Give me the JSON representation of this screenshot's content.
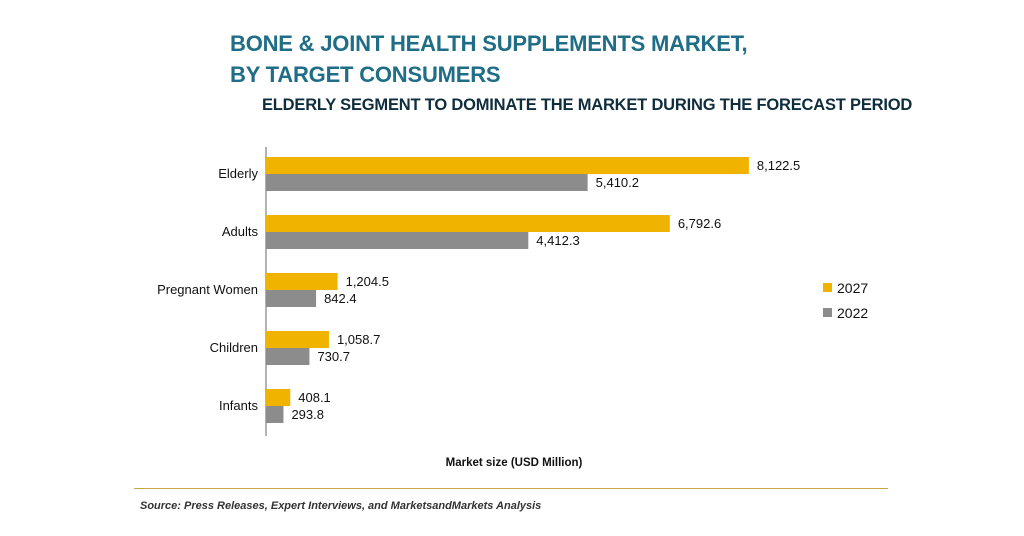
{
  "header": {
    "title_line1": "BONE & JOINT HEALTH SUPPLEMENTS MARKET,",
    "title_line2": "BY TARGET CONSUMERS",
    "subtitle": "ELDERLY SEGMENT TO DOMINATE THE MARKET DURING THE FORECAST PERIOD"
  },
  "footer": {
    "source": "Source: Press Releases, Expert Interviews, and MarketsandMarkets Analysis"
  },
  "colors": {
    "series_2027": "#f0b400",
    "series_2022": "#8c8c8c",
    "title": "#1f6d86"
  },
  "chart_data": {
    "type": "bar",
    "orientation": "horizontal",
    "title": "BONE & JOINT HEALTH SUPPLEMENTS MARKET, BY TARGET CONSUMERS",
    "subtitle": "ELDERLY SEGMENT TO DOMINATE THE MARKET DURING THE FORECAST PERIOD",
    "xlabel": "Market size (USD Million)",
    "ylabel": "",
    "categories": [
      "Elderly",
      "Adults",
      "Pregnant Women",
      "Children",
      "Infants"
    ],
    "series": [
      {
        "name": "2027",
        "values": [
          8122.5,
          6792.6,
          1204.5,
          1058.7,
          408.1
        ],
        "labels": [
          "8,122.5",
          "6,792.6",
          "1,204.5",
          "1,058.7",
          "408.1"
        ]
      },
      {
        "name": "2022",
        "values": [
          5410.2,
          4412.3,
          842.4,
          730.7,
          293.8
        ],
        "labels": [
          "5,410.2",
          "4,412.3",
          "842.4",
          "730.7",
          "293.8"
        ]
      }
    ],
    "xlim": [
      0,
      9000
    ],
    "grid": false,
    "legend": "right"
  }
}
